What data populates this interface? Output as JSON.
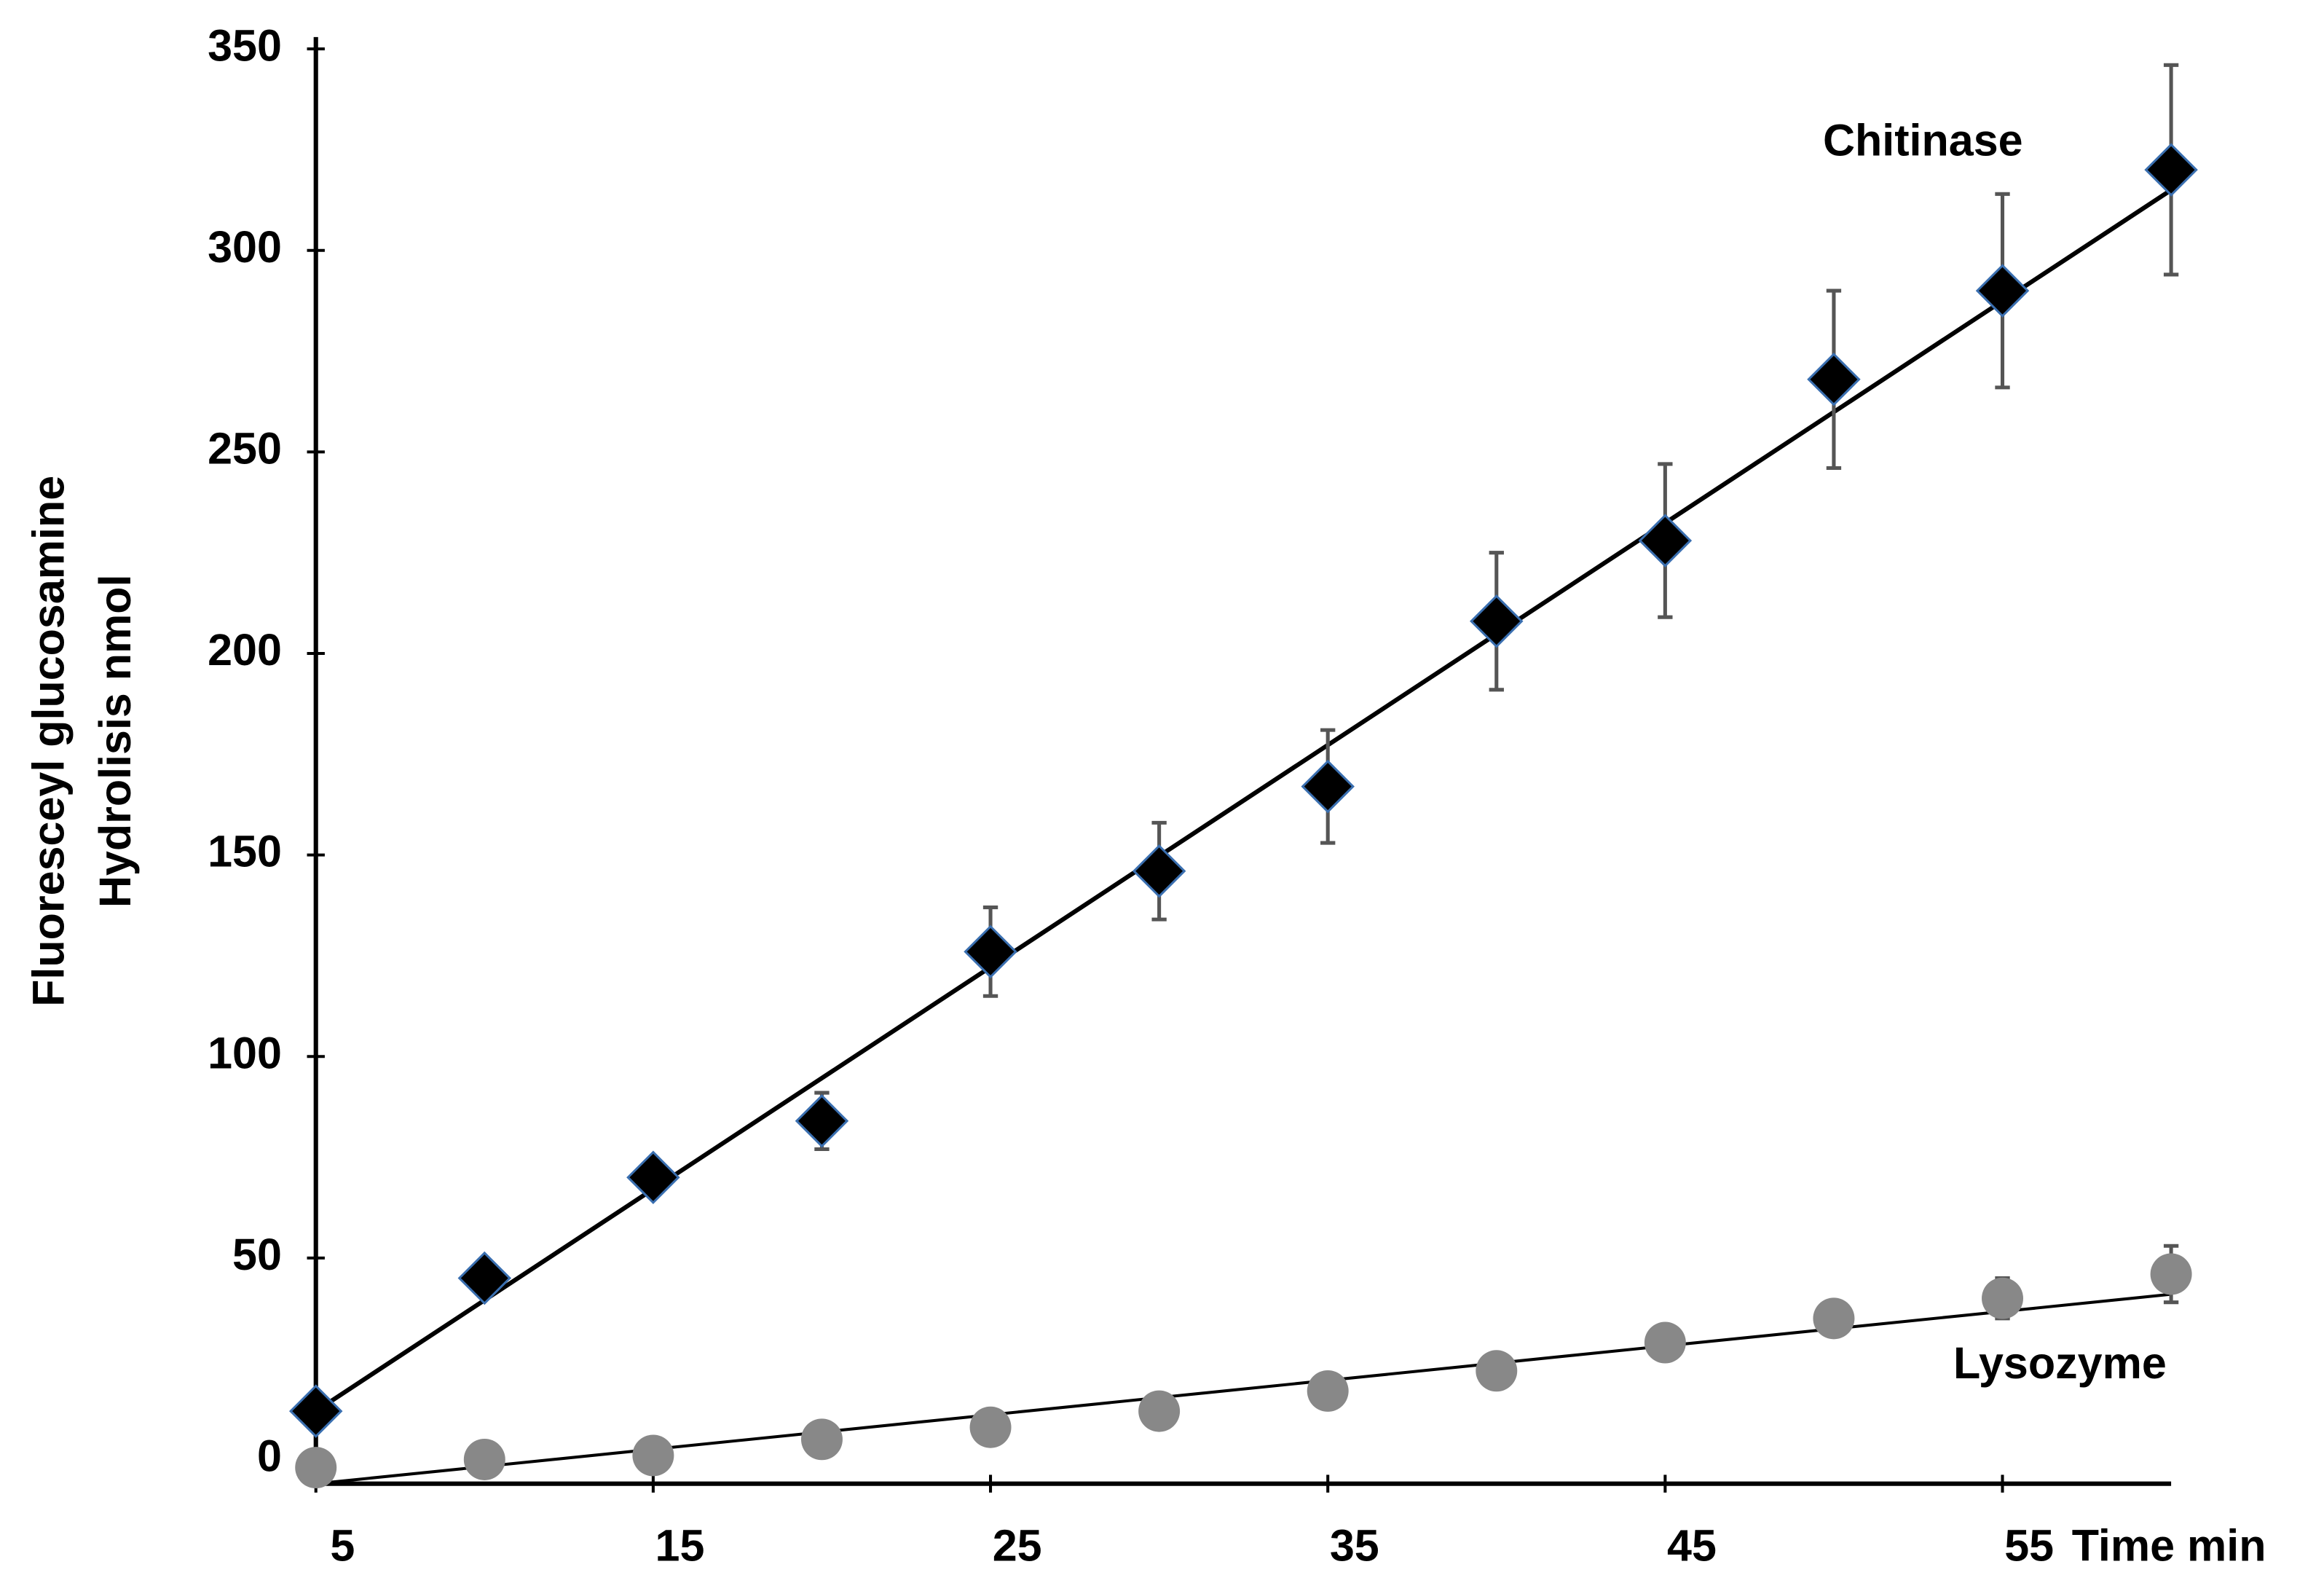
{
  "chart_data": {
    "type": "scatter",
    "y_label": [
      "Fluoresceyl glucosamine",
      "Hydrolisis nmol"
    ],
    "x_label": "Time min",
    "x": [
      5,
      10,
      15,
      20,
      25,
      30,
      35,
      40,
      45,
      50,
      55,
      60
    ],
    "xlim": [
      5,
      60
    ],
    "xticks": [
      5,
      15,
      25,
      35,
      45,
      55
    ],
    "ylim": [
      -6,
      350
    ],
    "yticks": [
      0,
      50,
      100,
      150,
      200,
      250,
      300,
      350
    ],
    "series": [
      {
        "name": "Chitinase",
        "color": "#000000",
        "marker": "diamond",
        "values": [
          12,
          45,
          70,
          84,
          126,
          146,
          167,
          208,
          228,
          268,
          290,
          320
        ],
        "errors": [
          0,
          2,
          4,
          7,
          11,
          12,
          14,
          17,
          19,
          22,
          24,
          26
        ],
        "fit": {
          "x": [
            5,
            60
          ],
          "values": [
            12,
            315
          ]
        }
      },
      {
        "name": "Lysozyme",
        "color": "#888888",
        "marker": "circle",
        "values": [
          -2,
          0,
          1,
          5,
          8,
          12,
          17,
          22,
          29,
          35,
          40,
          46
        ],
        "errors": [
          0,
          0,
          0,
          1,
          1,
          1,
          1,
          2,
          3,
          4,
          5,
          7
        ],
        "fit": {
          "x": [
            5,
            60
          ],
          "values": [
            -6,
            41
          ]
        }
      }
    ]
  }
}
